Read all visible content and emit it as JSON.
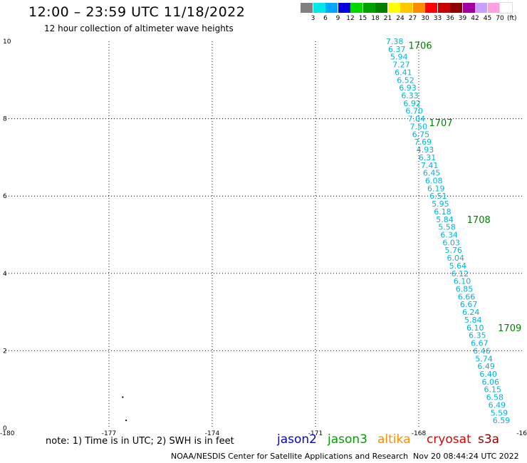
{
  "header": {
    "title": "12:00 – 23:59 UTC 11/18/2022",
    "subtitle": "12 hour collection of altimeter wave heights"
  },
  "color_scale": {
    "colors": [
      "#808080",
      "#00e8e8",
      "#00a8ff",
      "#0000e0",
      "#00d800",
      "#00a000",
      "#008000",
      "#ffff00",
      "#ffc800",
      "#ff8c00",
      "#ff0000",
      "#c80000",
      "#8c0000",
      "#a000a0",
      "#c8a0ff",
      "#ffa0e0",
      "#ffffff"
    ],
    "labels": [
      "3",
      "6",
      "9",
      "12",
      "15",
      "18",
      "21",
      "24",
      "27",
      "30",
      "33",
      "36",
      "39",
      "42",
      "45",
      "70"
    ],
    "unit": "(ft)"
  },
  "axes": {
    "x_ticks": [
      "-180",
      "-177",
      "-174",
      "-171",
      "-168",
      "-16"
    ],
    "y_ticks": [
      "10",
      "8",
      "6",
      "4",
      "2",
      "0"
    ]
  },
  "chart_data": {
    "type": "scatter",
    "xlim": [
      -180,
      -165
    ],
    "ylim": [
      0,
      10
    ],
    "grid": true,
    "track": {
      "color": "#00b4dc",
      "values": [
        "7.38",
        "6.37",
        "5.94",
        "7.27",
        "6.41",
        "6.52",
        "6.93",
        "6.33",
        "6.92",
        "6.70",
        "7.04",
        "7.50",
        "6.75",
        "7.69",
        "4.93",
        "6.31",
        "7.41",
        "6.45",
        "6.08",
        "6.19",
        "6.51",
        "5.95",
        "6.18",
        "5.84",
        "5.58",
        "6.34",
        "6.03",
        "5.76",
        "6.04",
        "5.64",
        "6.12",
        "6.10",
        "6.85",
        "6.66",
        "6.67",
        "6.24",
        "5.84",
        "6.10",
        "6.35",
        "6.67",
        "6.46",
        "5.74",
        "6.49",
        "6.40",
        "6.06",
        "6.15",
        "6.58",
        "6.49",
        "5.59",
        "6.59"
      ],
      "points": [
        {
          "lon": -168.7,
          "lat": 10.0
        },
        {
          "lon": -165.6,
          "lat": 0.2
        }
      ]
    },
    "time_labels": [
      {
        "text": "1706",
        "lon": -168.3,
        "lat": 9.9
      },
      {
        "text": "1707",
        "lon": -167.7,
        "lat": 7.9
      },
      {
        "text": "1708",
        "lon": -166.6,
        "lat": 5.4
      },
      {
        "text": "1709",
        "lon": -165.7,
        "lat": 2.6
      }
    ],
    "dots": [
      {
        "lon": -176.6,
        "lat": 0.8
      },
      {
        "lon": -176.5,
        "lat": 0.2
      }
    ]
  },
  "footer": {
    "note": "note:  1) Time is in UTC;  2) SWH is in feet",
    "satellites": [
      {
        "name": "jason2",
        "color": "#0000e0"
      },
      {
        "name": "jason3",
        "color": "#00a000"
      },
      {
        "name": "altika",
        "color": "#ff8c00"
      },
      {
        "name": "cryosat",
        "color": "#e00000"
      },
      {
        "name": "s3a",
        "color": "#8c0000"
      }
    ],
    "credit": "NOAA/NESDIS Center for Satellite Applications and Research",
    "timestamp": "Nov 20 08:44:24 UTC 2022"
  }
}
